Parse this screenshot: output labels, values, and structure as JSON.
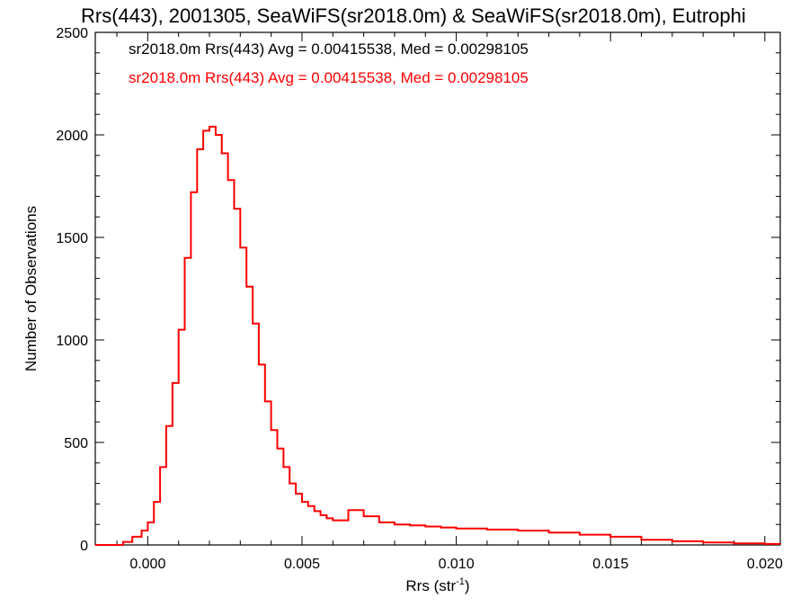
{
  "chart_data": {
    "type": "histogram",
    "title": "Rrs(443), 2001305, SeaWiFS(sr2018.0m) & SeaWiFS(sr2018.0m), Eutrophi",
    "xlabel_main": "Rrs (str",
    "xlabel_sup": "-1",
    "xlabel_close": ")",
    "ylabel": "Number of Observations",
    "xlim": [
      -0.0017,
      0.0205
    ],
    "ylim": [
      0,
      2500
    ],
    "grid": false,
    "legend_position": "top-left",
    "x_ticks": [
      {
        "value": 0.0,
        "label": "0.000"
      },
      {
        "value": 0.005,
        "label": "0.005"
      },
      {
        "value": 0.01,
        "label": "0.010"
      },
      {
        "value": 0.015,
        "label": "0.015"
      },
      {
        "value": 0.02,
        "label": "0.020"
      }
    ],
    "y_ticks": [
      {
        "value": 0,
        "label": "0"
      },
      {
        "value": 500,
        "label": "500"
      },
      {
        "value": 1000,
        "label": "1000"
      },
      {
        "value": 1500,
        "label": "1500"
      },
      {
        "value": 2000,
        "label": "2000"
      },
      {
        "value": 2500,
        "label": "2500"
      }
    ],
    "legend": [
      {
        "text": "sr2018.0m Rrs(443) Avg = 0.00415538, Med = 0.00298105",
        "color": "#000000"
      },
      {
        "text": "sr2018.0m Rrs(443) Avg = 0.00415538, Med = 0.00298105",
        "color": "#ff0000"
      }
    ],
    "series": [
      {
        "color": "#ff0000",
        "x": [
          -0.0017,
          -0.001,
          -0.0008,
          -0.0005,
          -0.0002,
          0.0,
          0.0002,
          0.0004,
          0.0006,
          0.0008,
          0.001,
          0.0012,
          0.0014,
          0.0016,
          0.0018,
          0.002,
          0.0022,
          0.0024,
          0.0026,
          0.0028,
          0.003,
          0.0032,
          0.0034,
          0.0036,
          0.0038,
          0.004,
          0.0042,
          0.0044,
          0.0046,
          0.0048,
          0.005,
          0.0052,
          0.0054,
          0.0056,
          0.0058,
          0.006,
          0.0065,
          0.007,
          0.0075,
          0.008,
          0.0085,
          0.009,
          0.0095,
          0.01,
          0.011,
          0.012,
          0.013,
          0.014,
          0.015,
          0.016,
          0.017,
          0.018,
          0.019,
          0.02,
          0.0205
        ],
        "y": [
          0,
          0,
          15,
          40,
          70,
          110,
          210,
          380,
          580,
          790,
          1050,
          1400,
          1720,
          1930,
          2020,
          2040,
          2000,
          1910,
          1780,
          1640,
          1450,
          1260,
          1080,
          880,
          700,
          560,
          470,
          380,
          300,
          250,
          210,
          190,
          165,
          145,
          130,
          120,
          170,
          140,
          110,
          100,
          95,
          90,
          85,
          80,
          75,
          70,
          60,
          50,
          40,
          25,
          18,
          12,
          8,
          5,
          3
        ]
      }
    ]
  }
}
